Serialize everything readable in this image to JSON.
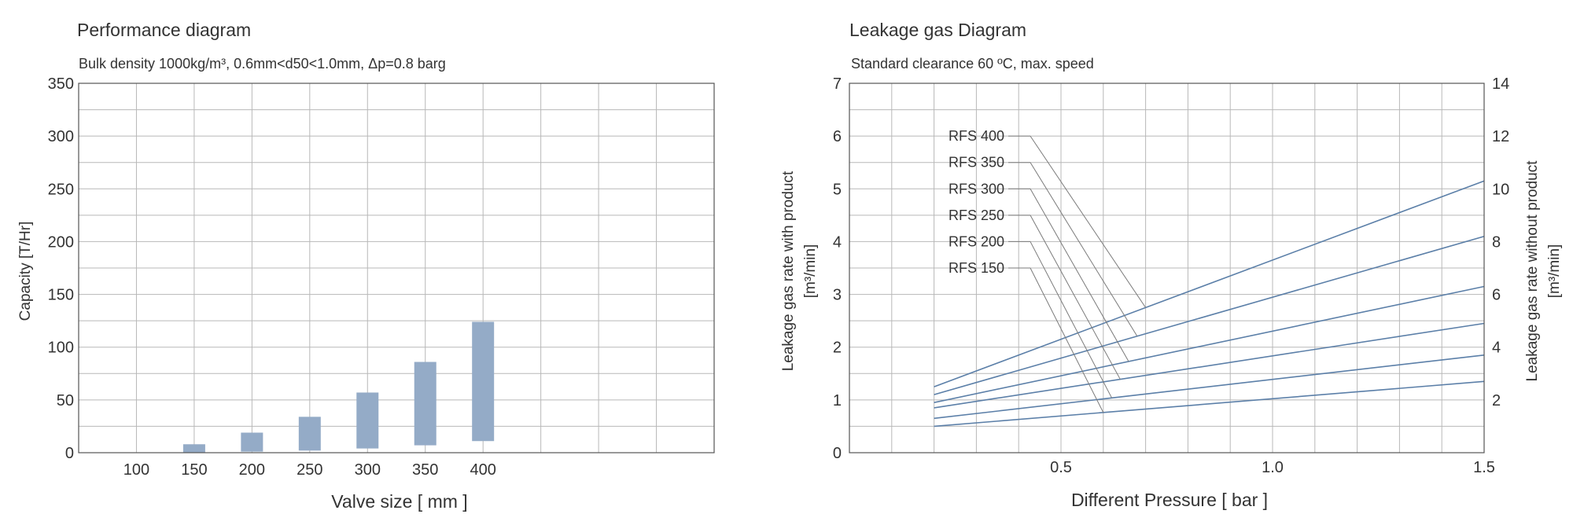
{
  "chart_data": [
    {
      "type": "bar",
      "title": "Performance diagram",
      "subtitle": "Bulk density 1000kg/m³,  0.6mm<d50<1.0mm,  Δp=0.8 barg",
      "xlabel": "Valve size [ mm ]",
      "ylabel": "Capacity [T/Hr]",
      "categories": [
        "100",
        "150",
        "200",
        "250",
        "300",
        "350",
        "400"
      ],
      "bars": [
        {
          "category": "150",
          "low": 0,
          "high": 8
        },
        {
          "category": "200",
          "low": 1,
          "high": 19
        },
        {
          "category": "250",
          "low": 2,
          "high": 34
        },
        {
          "category": "300",
          "low": 4,
          "high": 57
        },
        {
          "category": "350",
          "low": 7,
          "high": 86
        },
        {
          "category": "400",
          "low": 11,
          "high": 124
        }
      ],
      "ylim": [
        0,
        350
      ],
      "yticks": [
        "0",
        "50",
        "100",
        "150",
        "200",
        "250",
        "300",
        "350"
      ],
      "grid": true
    },
    {
      "type": "line",
      "title": "Leakage gas Diagram",
      "subtitle": "Standard clearance  60 ºC, max. speed",
      "xlabel": "Different Pressure [ bar ]",
      "ylabel_left": "Leakage gas rate with product",
      "ylabel_left_unit": "[m³/min]",
      "ylabel_right": "Leakage gas rate without product",
      "ylabel_right_unit": "[m³/min]",
      "xlim": [
        0,
        1.5
      ],
      "ylim": [
        0,
        7
      ],
      "ylim_right": [
        0,
        14
      ],
      "xticks": [
        "0.5",
        "1.0",
        "1.5"
      ],
      "yticks_left": [
        "0",
        "1",
        "2",
        "3",
        "4",
        "5",
        "6",
        "7"
      ],
      "yticks_right": [
        "2",
        "4",
        "6",
        "8",
        "10",
        "12",
        "14"
      ],
      "grid": true,
      "series": [
        {
          "name": "RFS 400",
          "x": [
            0.2,
            1.5
          ],
          "y": [
            1.25,
            5.15
          ]
        },
        {
          "name": "RFS 350",
          "x": [
            0.2,
            1.5
          ],
          "y": [
            1.1,
            4.1
          ]
        },
        {
          "name": "RFS 300",
          "x": [
            0.2,
            1.5
          ],
          "y": [
            0.95,
            3.15
          ]
        },
        {
          "name": "RFS 250",
          "x": [
            0.2,
            1.5
          ],
          "y": [
            0.85,
            2.45
          ]
        },
        {
          "name": "RFS 200",
          "x": [
            0.2,
            1.5
          ],
          "y": [
            0.65,
            1.85
          ]
        },
        {
          "name": "RFS 150",
          "x": [
            0.2,
            1.5
          ],
          "y": [
            0.5,
            1.35
          ]
        }
      ]
    }
  ]
}
